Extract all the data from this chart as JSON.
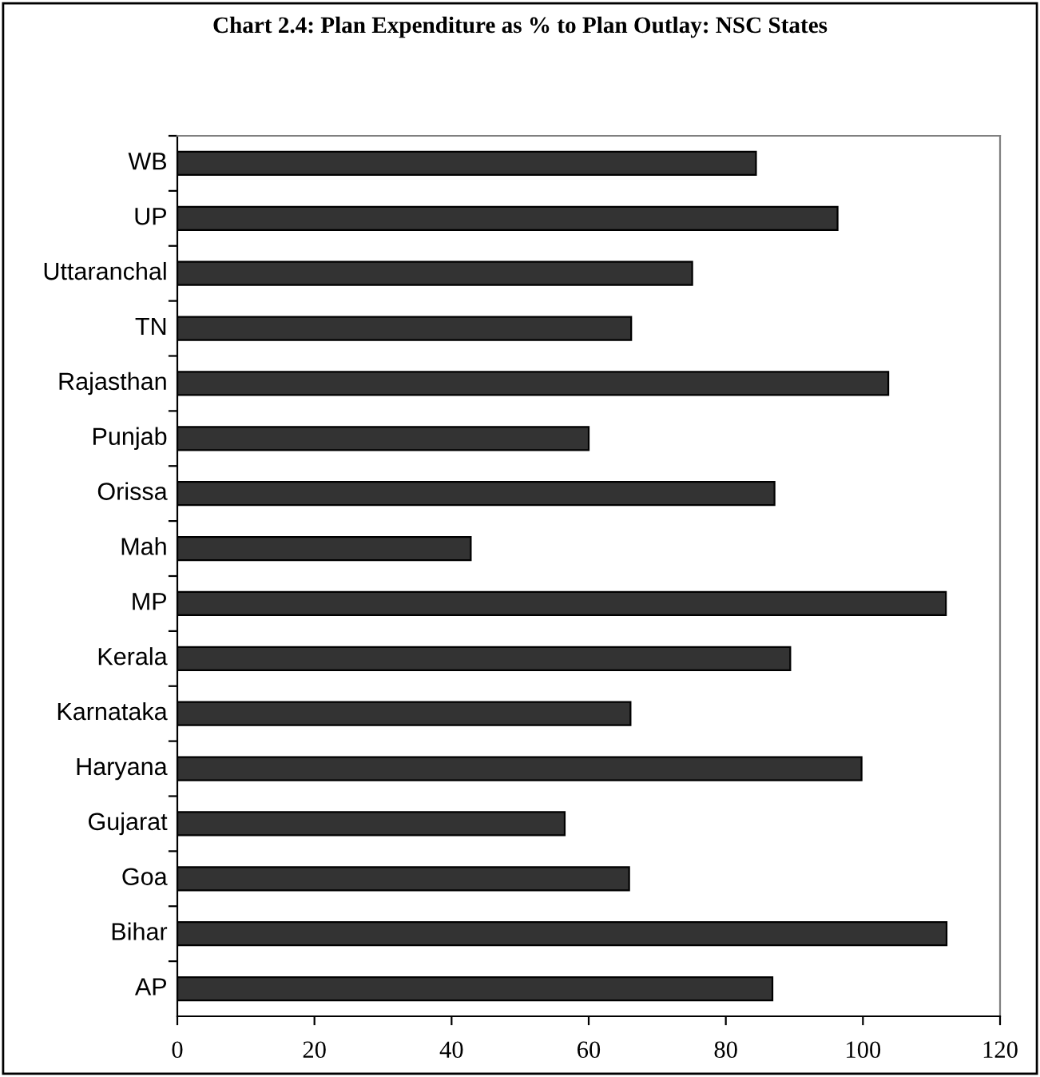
{
  "chart_data": {
    "type": "bar",
    "orientation": "horizontal",
    "title": "Chart 2.4: Plan Expenditure as % to Plan Outlay: NSC States",
    "categories": [
      "WB",
      "UP",
      "Uttaranchal",
      "TN",
      "Rajasthan",
      "Punjab",
      "Orissa",
      "Mah",
      "MP",
      "Kerala",
      "Karnataka",
      "Haryana",
      "Gujarat",
      "Goa",
      "Bihar",
      "AP"
    ],
    "values": [
      84.4,
      96.3,
      75.1,
      66.2,
      103.7,
      60.0,
      87.1,
      42.8,
      112.1,
      89.4,
      66.1,
      99.8,
      56.5,
      65.9,
      112.2,
      86.8
    ],
    "color": "#333333",
    "xlim": [
      0,
      120
    ],
    "xticks": [
      0,
      20,
      40,
      60,
      80,
      100,
      120
    ],
    "grid": false,
    "legend": false
  }
}
